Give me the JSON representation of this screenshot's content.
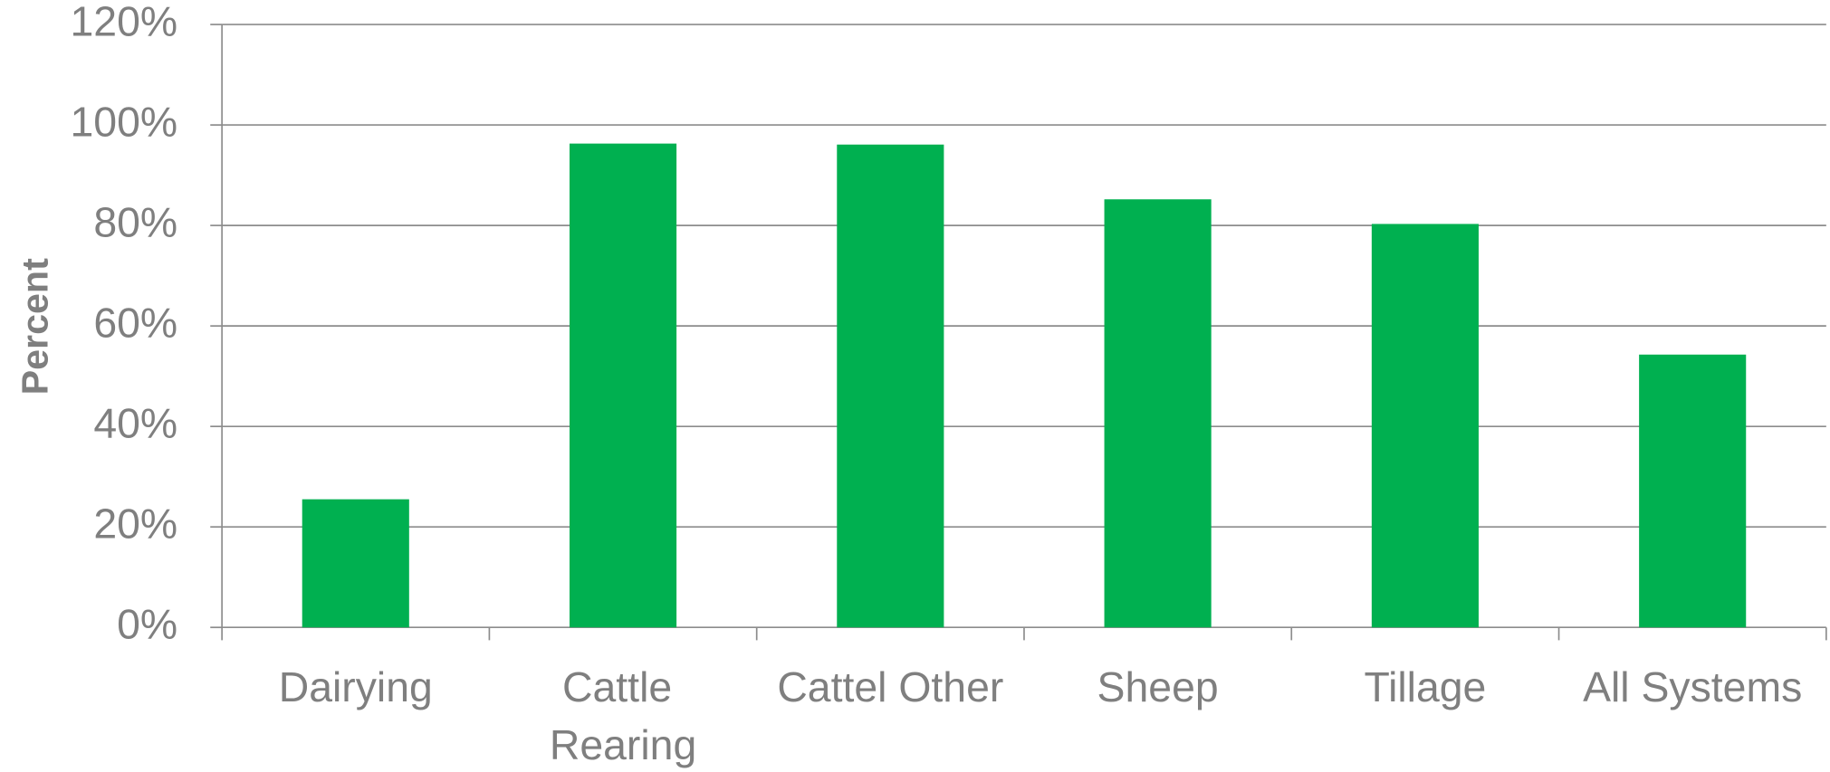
{
  "chart_data": {
    "type": "bar",
    "y_label": "Percent",
    "categories": [
      "Dairying",
      "Cattle Rearing",
      "Cattel Other",
      "Sheep",
      "Tillage",
      "All Systems"
    ],
    "values": [
      25.5,
      96.3,
      96.1,
      85.2,
      80.3,
      54.3
    ],
    "color": "#00b050",
    "ylim": [
      0,
      120
    ],
    "yticks": [
      {
        "value": 0,
        "label": "0%"
      },
      {
        "value": 20,
        "label": "20%"
      },
      {
        "value": 40,
        "label": "40%"
      },
      {
        "value": 60,
        "label": "60%"
      },
      {
        "value": 80,
        "label": "80%"
      },
      {
        "value": 100,
        "label": "100%"
      },
      {
        "value": 120,
        "label": "120%"
      }
    ],
    "grid": true
  }
}
